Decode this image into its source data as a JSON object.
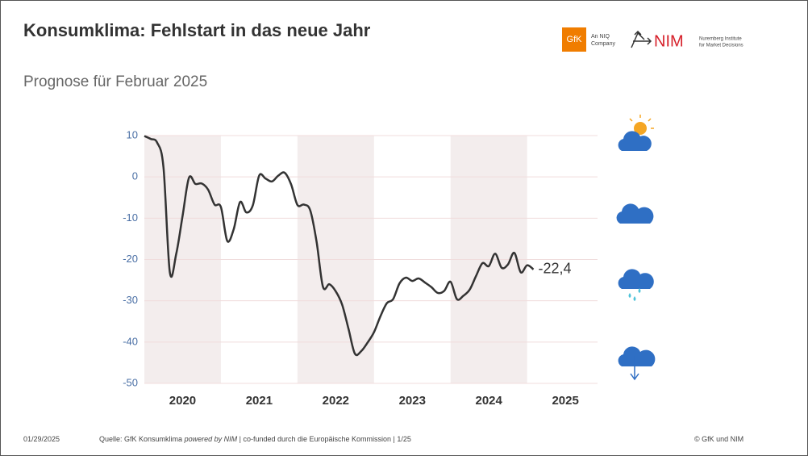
{
  "header": {
    "title": "Konsumklima: Fehlstart in das neue Jahr",
    "subtitle": "Prognose für Februar 2025"
  },
  "logos": {
    "gfk": "GfK",
    "gfk_note": [
      "An NIQ",
      "Company"
    ],
    "nim": "NIM",
    "nim_note": [
      "Nuremberg Institute",
      "for Market Decisions"
    ]
  },
  "chart_data": {
    "type": "line",
    "x": [
      2020,
      2020.083,
      2020.167,
      2020.25,
      2020.333,
      2020.417,
      2020.5,
      2020.583,
      2020.667,
      2020.75,
      2020.833,
      2020.917,
      2021,
      2021.083,
      2021.167,
      2021.25,
      2021.333,
      2021.417,
      2021.5,
      2021.583,
      2021.667,
      2021.75,
      2021.833,
      2021.917,
      2022,
      2022.083,
      2022.167,
      2022.25,
      2022.333,
      2022.417,
      2022.5,
      2022.583,
      2022.667,
      2022.75,
      2022.833,
      2022.917,
      2023,
      2023.083,
      2023.167,
      2023.25,
      2023.333,
      2023.417,
      2023.5,
      2023.583,
      2023.667,
      2023.75,
      2023.833,
      2023.917,
      2024,
      2024.083,
      2024.167,
      2024.25,
      2024.333,
      2024.417,
      2024.5,
      2024.583,
      2024.667,
      2024.75,
      2024.833,
      2024.917,
      2025,
      2025.083
    ],
    "series": [
      {
        "color": "#333333",
        "values": [
          9.9,
          9.2,
          8.3,
          2.3,
          -23.1,
          -18.6,
          -9.4,
          -0.2,
          -1.7,
          -1.6,
          -3.1,
          -6.7,
          -7.3,
          -15.5,
          -12.7,
          -6.1,
          -8.6,
          -6.9,
          0.3,
          -0.4,
          -1.1,
          0.3,
          1.0,
          -1.8,
          -6.8,
          -6.7,
          -8.1,
          -15.7,
          -26.6,
          -26.0,
          -27.7,
          -30.9,
          -36.8,
          -42.8,
          -42.2,
          -40.1,
          -37.6,
          -33.8,
          -30.6,
          -29.6,
          -25.8,
          -24.4,
          -25.2,
          -24.6,
          -25.6,
          -26.7,
          -28.1,
          -27.6,
          -25.4,
          -29.6,
          -28.8,
          -27.3,
          -24.0,
          -20.9,
          -21.6,
          -18.6,
          -22.0,
          -21.2,
          -18.4,
          -23.1,
          -21.4,
          -22.4
        ],
        "value_labels": [
          null,
          null,
          null,
          null,
          null,
          null,
          null,
          null,
          null,
          null,
          null,
          null,
          null,
          null,
          null,
          null,
          null,
          null,
          null,
          null,
          null,
          null,
          null,
          null,
          null,
          null,
          null,
          null,
          null,
          null,
          null,
          null,
          null,
          null,
          null,
          null,
          null,
          null,
          null,
          null,
          null,
          null,
          null,
          null,
          null,
          null,
          null,
          null,
          null,
          null,
          null,
          null,
          null,
          null,
          null,
          null,
          null,
          null,
          null,
          null,
          null,
          "-22,4"
        ]
      }
    ],
    "xlim": [
      2020,
      2025.92
    ],
    "xticks": [
      {
        "value": 2020.5,
        "label": "2020"
      },
      {
        "value": 2021.5,
        "label": "2021"
      },
      {
        "value": 2022.5,
        "label": "2022"
      },
      {
        "value": 2023.5,
        "label": "2023"
      },
      {
        "value": 2024.5,
        "label": "2024"
      },
      {
        "value": 2025.5,
        "label": "2025"
      }
    ],
    "ylim": [
      -50,
      10
    ],
    "yticks": [
      -50,
      -40,
      -30,
      -20,
      -10,
      0,
      10
    ],
    "grid": true,
    "band_color": "#f3eded"
  },
  "footer": {
    "date": "01/29/2025",
    "source": [
      "Quelle: GfK Konsumklima",
      "powered by NIM",
      "| co-funded durch die Europäische Kommission | 1/25"
    ],
    "copyright": "© GfK und NIM"
  }
}
